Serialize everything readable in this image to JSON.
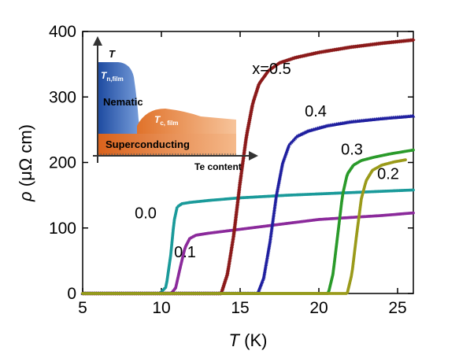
{
  "chart_data": {
    "type": "line",
    "xlabel_symbol": "T",
    "xlabel_unit": " (K)",
    "ylabel_symbol": "ρ",
    "ylabel_unit": " (μΩ cm)",
    "xlim": [
      5,
      26
    ],
    "ylim": [
      0,
      400
    ],
    "xticks": [
      5,
      10,
      15,
      20,
      25
    ],
    "yticks": [
      0,
      100,
      200,
      300,
      400
    ],
    "grid": false,
    "series": [
      {
        "name": "0.0",
        "color": "#1a9a9a",
        "marker": "circle",
        "x": [
          5,
          9.9,
          10.3,
          10.6,
          10.8,
          11.0,
          11.3,
          11.8,
          13,
          15,
          18,
          20,
          23,
          26
        ],
        "y": [
          0,
          0,
          10,
          60,
          110,
          132,
          137,
          139,
          142,
          146,
          150,
          152,
          155,
          158
        ]
      },
      {
        "name": "0.1",
        "color": "#8b2a9b",
        "marker": "circle",
        "x": [
          5,
          10.6,
          10.9,
          11.2,
          11.5,
          11.8,
          12.2,
          13,
          15,
          17,
          20,
          22,
          24,
          26
        ],
        "y": [
          0,
          0,
          8,
          40,
          70,
          84,
          89,
          92,
          98,
          104,
          113,
          116,
          119,
          123
        ]
      },
      {
        "name": "x=0.5",
        "color": "#8b1a1a",
        "marker": "diamond",
        "x": [
          5,
          13.8,
          14.2,
          14.6,
          15.0,
          15.4,
          15.8,
          16.2,
          16.8,
          17.5,
          18.5,
          20,
          22,
          24,
          26
        ],
        "y": [
          0,
          0,
          30,
          90,
          170,
          240,
          290,
          320,
          340,
          352,
          360,
          368,
          376,
          382,
          387
        ]
      },
      {
        "name": "0.4",
        "color": "#1f1f9f",
        "marker": "triangle",
        "x": [
          5,
          16.1,
          16.5,
          16.9,
          17.3,
          17.7,
          18.1,
          18.6,
          19.3,
          20.5,
          22,
          24,
          26
        ],
        "y": [
          0,
          0,
          25,
          80,
          150,
          200,
          227,
          240,
          248,
          256,
          262,
          267,
          271
        ]
      },
      {
        "name": "0.3",
        "color": "#2a9a2a",
        "marker": "circle",
        "x": [
          5,
          20.6,
          20.9,
          21.2,
          21.5,
          21.8,
          22.2,
          22.7,
          23.5,
          24.5,
          26
        ],
        "y": [
          0,
          0,
          30,
          90,
          150,
          182,
          196,
          203,
          208,
          213,
          219
        ]
      },
      {
        "name": "0.2",
        "color": "#9a9a1a",
        "marker": "circle",
        "x": [
          5,
          21.8,
          22.1,
          22.4,
          22.7,
          23.0,
          23.4,
          24.0,
          24.8,
          25.5
        ],
        "y": [
          0,
          0,
          30,
          90,
          145,
          172,
          188,
          196,
          201,
          204
        ]
      }
    ],
    "series_label_positions_data": [
      {
        "text": "0.0",
        "x": 9.0,
        "y": 115
      },
      {
        "text": "0.1",
        "x": 11.5,
        "y": 55
      },
      {
        "text": "x=0.5",
        "x": 17.0,
        "y": 335
      },
      {
        "text": "0.4",
        "x": 19.8,
        "y": 270
      },
      {
        "text": "0.3",
        "x": 22.1,
        "y": 212
      },
      {
        "text": "0.2",
        "x": 24.4,
        "y": 175
      }
    ]
  },
  "inset": {
    "axis_t": "T",
    "xlabel": "Te content",
    "tn_main": "T",
    "tn_sub": "n,film",
    "nematic": "Nematic",
    "tc_main": "T",
    "tc_sub": "c, film",
    "superconducting": "Superconducting",
    "colors": {
      "nematic": "#2f62b8",
      "superconducting": "#e8772e"
    }
  }
}
